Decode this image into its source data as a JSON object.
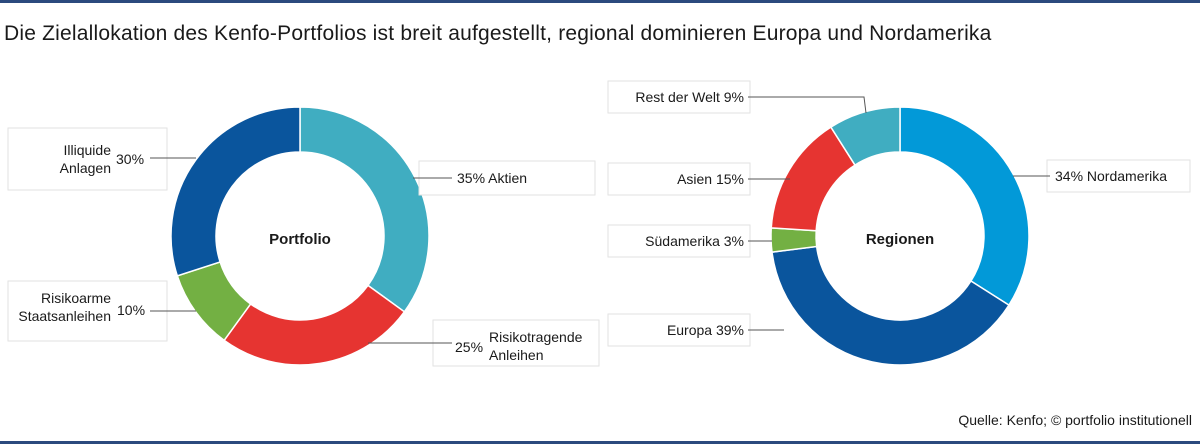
{
  "header": {
    "title": "Die Zielallokation des Kenfo-Portfolios ist breit aufgestellt, regional dominieren Europa und Nordamerika"
  },
  "footer": {
    "source": "Quelle: Kenfo; © portfolio institutionell"
  },
  "colors": {
    "rule": "#2b4a7e",
    "aktien": "#40adc1",
    "risikotragende_anleihen": "#e63431",
    "staatsanleihen": "#73b043",
    "illiquide": "#0a559d",
    "nordamerika": "#0299d8",
    "europa": "#0a559d",
    "suedamerika": "#73b043",
    "asien": "#e63431",
    "rest": "#40adc1"
  },
  "chart_data": [
    {
      "type": "pie",
      "style": "donut",
      "center_label": "Portfolio",
      "slices": [
        {
          "name": "Aktien",
          "value": 35,
          "label_lines": [
            "35% Aktien"
          ],
          "color": "#40adc1"
        },
        {
          "name": "Risikotragende Anleihen",
          "value": 25,
          "label_lines": [
            "25%",
            "Risikotragende",
            "Anleihen"
          ],
          "color": "#e63431"
        },
        {
          "name": "Risikoarme Staatsanleihen",
          "value": 10,
          "label_lines": [
            "Risikoarme",
            "Staatsanleihen",
            "10%"
          ],
          "color": "#73b043"
        },
        {
          "name": "Illiquide Anlagen",
          "value": 30,
          "label_lines": [
            "Illiquide",
            "Anlagen",
            "30%"
          ],
          "color": "#0a559d"
        }
      ]
    },
    {
      "type": "pie",
      "style": "donut",
      "center_label": "Regionen",
      "slices": [
        {
          "name": "Nordamerika",
          "value": 34,
          "label_lines": [
            "34% Nordamerika"
          ],
          "color": "#0299d8"
        },
        {
          "name": "Europa",
          "value": 39,
          "label_lines": [
            "Europa 39%"
          ],
          "color": "#0a559d"
        },
        {
          "name": "Südamerika",
          "value": 3,
          "label_lines": [
            "Südamerika 3%"
          ],
          "color": "#73b043"
        },
        {
          "name": "Asien",
          "value": 15,
          "label_lines": [
            "Asien 15%"
          ],
          "color": "#e63431"
        },
        {
          "name": "Rest der Welt",
          "value": 9,
          "label_lines": [
            "Rest der Welt 9%"
          ],
          "color": "#40adc1"
        }
      ]
    }
  ]
}
